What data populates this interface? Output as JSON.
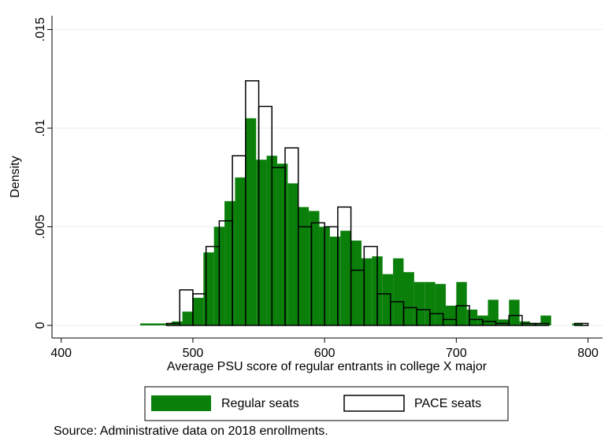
{
  "chart_data": {
    "type": "histogram",
    "x_label": "Average PSU score of regular entrants in college X major",
    "y_label": "Density",
    "source": "Source: Administrative data on 2018 enrollments.",
    "xlim": [
      393,
      811
    ],
    "ylim": [
      -0.00064,
      0.0157
    ],
    "xticks": [
      400,
      500,
      600,
      700,
      800
    ],
    "yticks": [
      {
        "value": 0,
        "label": "0"
      },
      {
        "value": 0.005,
        "label": ".005"
      },
      {
        "value": 0.01,
        "label": ".01"
      },
      {
        "value": 0.015,
        "label": ".015"
      }
    ],
    "grid": true,
    "legend": "bottom",
    "series": [
      {
        "name": "Regular seats",
        "color": "#0a7f0a",
        "filled": true,
        "bins": [
          460,
          468,
          476,
          484,
          492,
          500,
          508,
          516,
          524,
          532,
          540,
          548,
          556,
          564,
          572,
          580,
          588,
          596,
          604,
          612,
          620,
          628,
          636,
          644,
          652,
          660,
          668,
          676,
          684,
          692,
          700,
          708,
          716,
          724,
          732,
          740,
          748,
          756,
          764,
          772,
          780,
          788,
          796
        ],
        "values": [
          0.0001,
          0.0001,
          0.0001,
          0.0002,
          0.0007,
          0.0014,
          0.0037,
          0.005,
          0.0063,
          0.0075,
          0.0105,
          0.0084,
          0.0086,
          0.0082,
          0.0072,
          0.006,
          0.0058,
          0.005,
          0.0045,
          0.0048,
          0.0043,
          0.0034,
          0.0035,
          0.0026,
          0.0034,
          0.0027,
          0.0022,
          0.0022,
          0.0021,
          0.001,
          0.0022,
          0.0008,
          0.0005,
          0.0013,
          0.0003,
          0.0013,
          0.0002,
          0.0001,
          0.0005,
          0,
          0,
          0.0001
        ]
      },
      {
        "name": "PACE seats",
        "color": "#000000",
        "filled": false,
        "bins": [
          480,
          490,
          500,
          510,
          520,
          530,
          540,
          550,
          560,
          570,
          580,
          590,
          600,
          610,
          620,
          630,
          640,
          650,
          660,
          670,
          680,
          690,
          700,
          710,
          720,
          730,
          740,
          750,
          760,
          770,
          780,
          790,
          800
        ],
        "values": [
          0.0001,
          0.0018,
          0.0016,
          0.004,
          0.0053,
          0.0086,
          0.0124,
          0.0111,
          0.008,
          0.009,
          0.005,
          0.0052,
          0.005,
          0.006,
          0.0028,
          0.004,
          0.0016,
          0.0012,
          0.0009,
          0.0008,
          0.0006,
          0.0003,
          0.001,
          0.0003,
          0.0002,
          0.0001,
          0.0005,
          0.0001,
          0.0001,
          0,
          0,
          0.0001
        ]
      }
    ]
  }
}
